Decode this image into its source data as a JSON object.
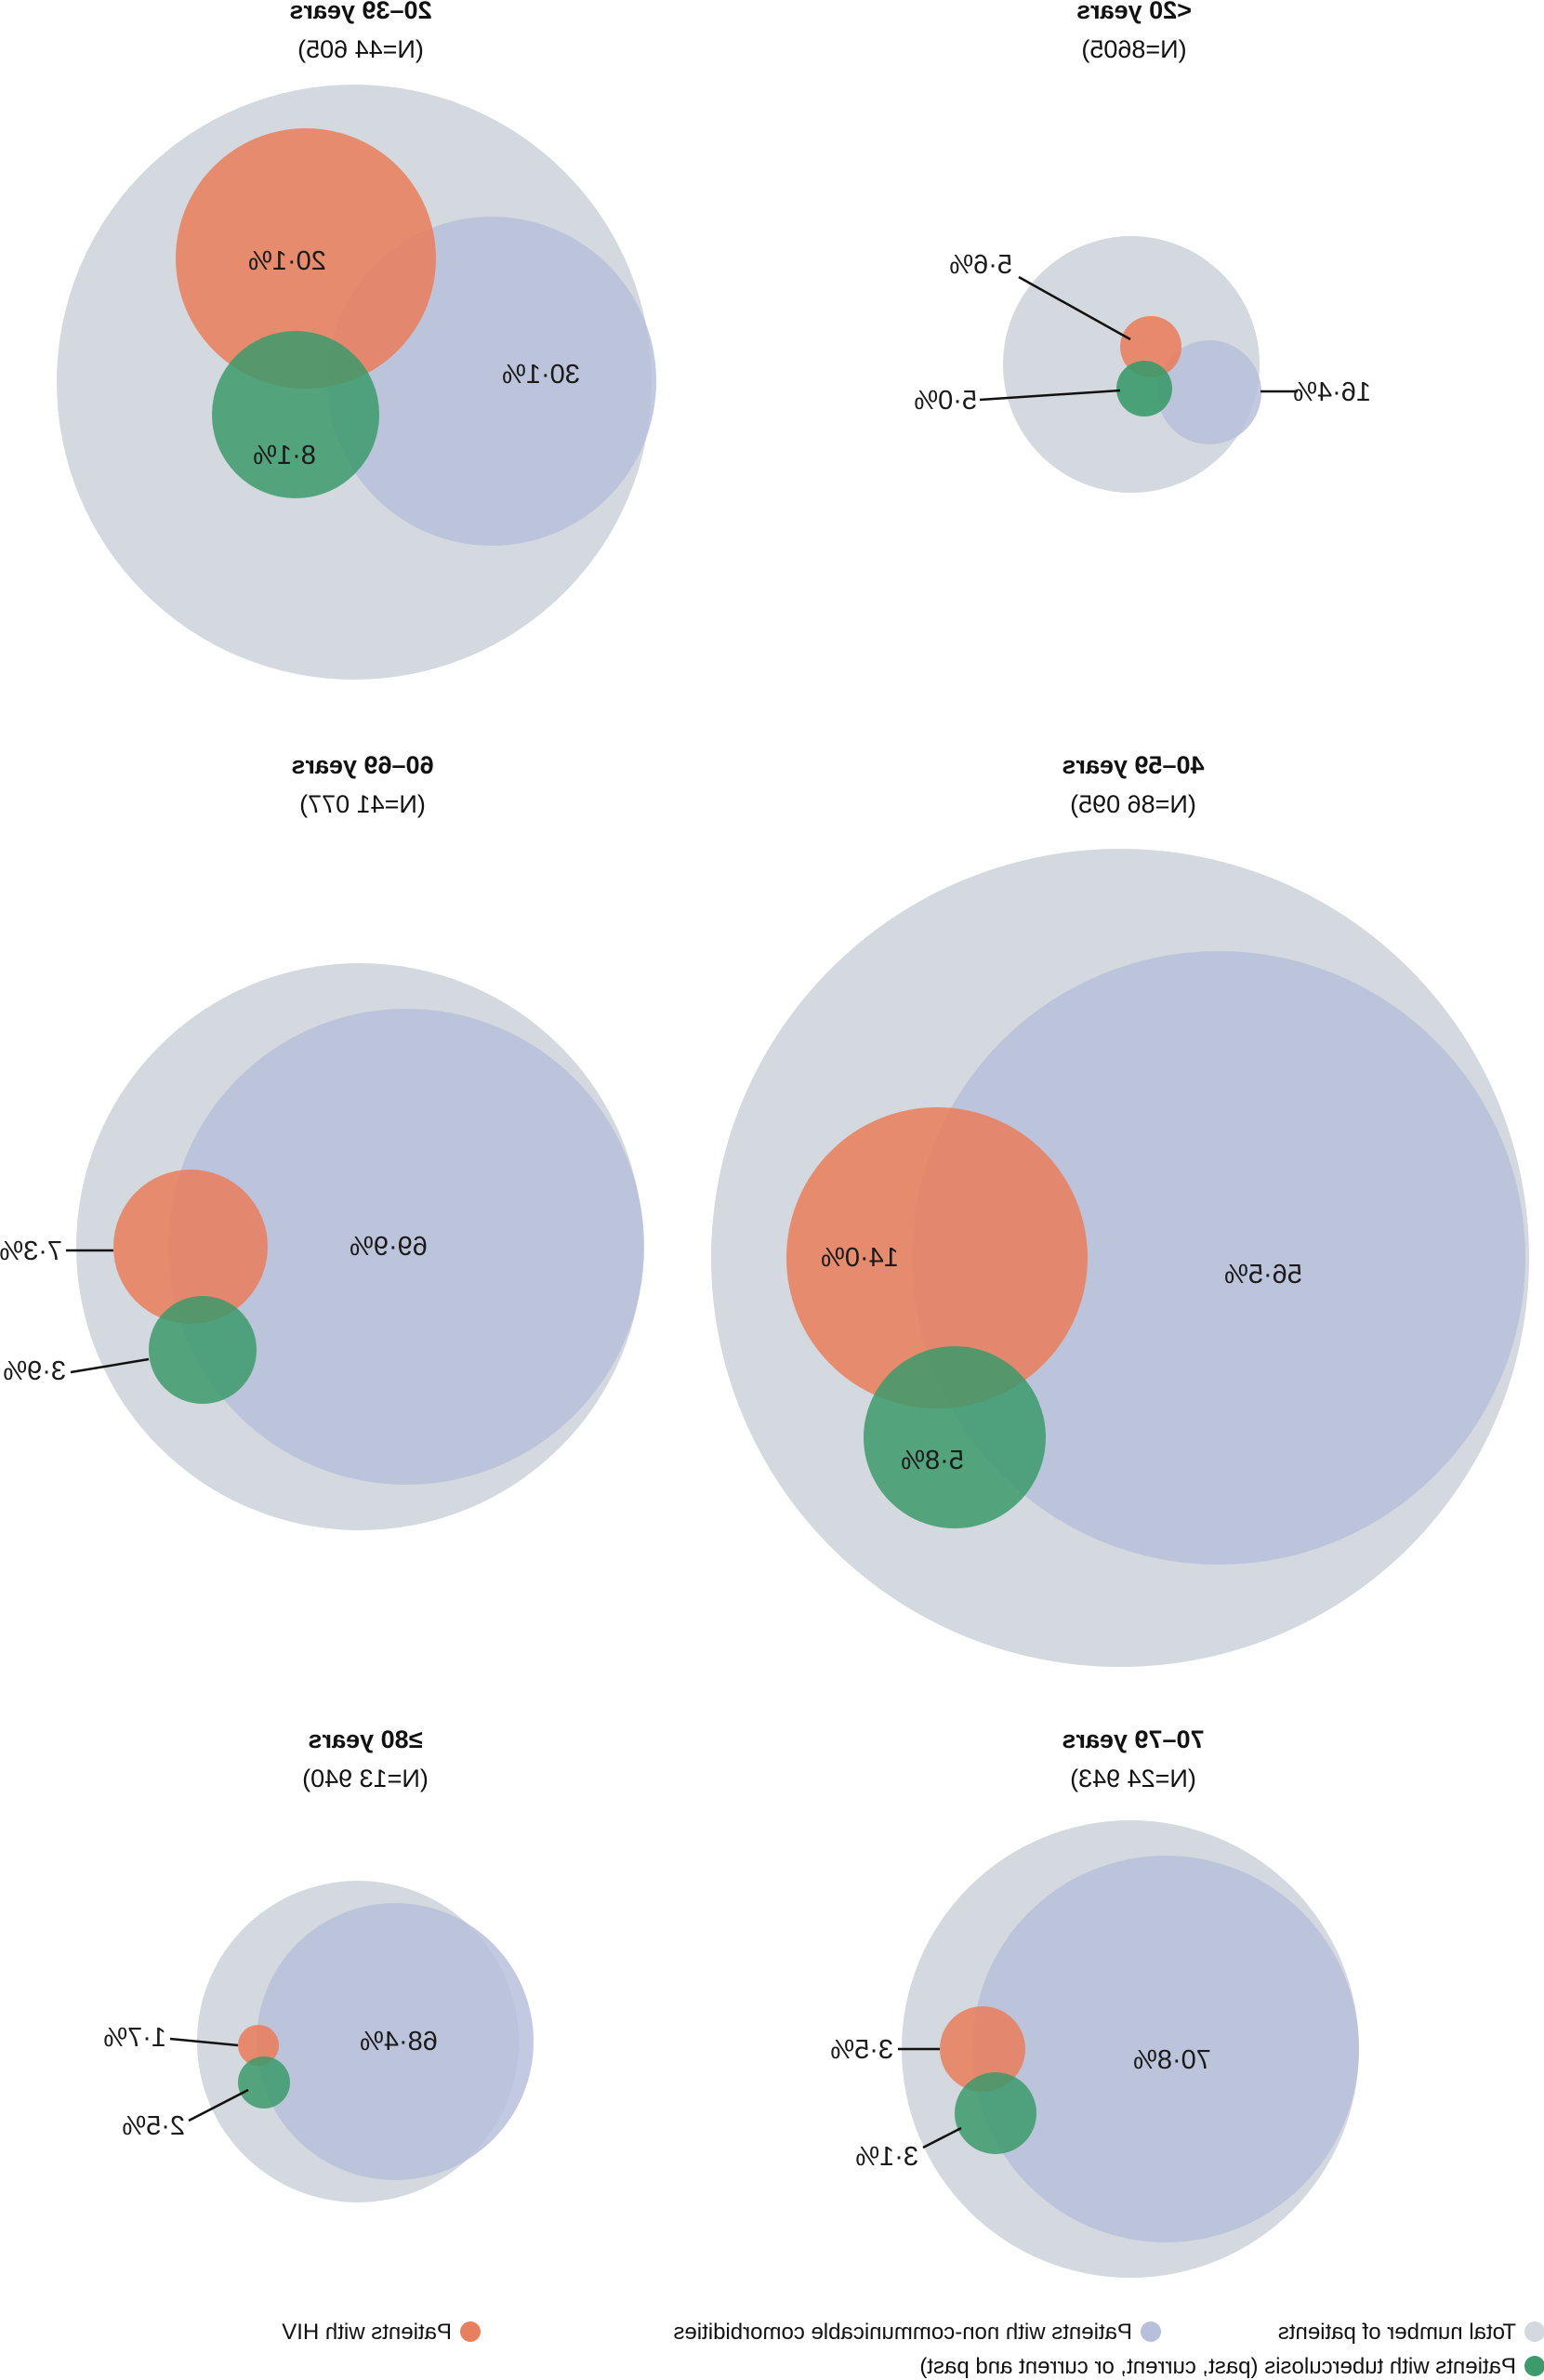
{
  "colors": {
    "total": "#d3d9de",
    "ncd": "#b7bfdc",
    "hiv": "#e8805f",
    "tb": "#3c9a6b"
  },
  "legend": {
    "total": "Total number of patients",
    "ncd": "Patients with non-communicable comorbidities",
    "hiv": "Patients with HIV",
    "tb": "Patients with tuberculosis (past, current, or current and past)"
  },
  "groups": [
    {
      "title": "<20 years",
      "n": "(N=8605)",
      "ncd": "16·4%",
      "hiv": "5·6%",
      "tb": "5·0%"
    },
    {
      "title": "20–39 years",
      "n": "(N=44 605)",
      "ncd": "30·1%",
      "hiv": "20·1%",
      "tb": "8·1%"
    },
    {
      "title": "40–59 years",
      "n": "(N=86 095)",
      "ncd": "56·5%",
      "hiv": "14·0%",
      "tb": "5·8%"
    },
    {
      "title": "60–69 years",
      "n": "(N=41 077)",
      "ncd": "69·9%",
      "hiv": "7·3%",
      "tb": "3·9%"
    },
    {
      "title": "70–79 years",
      "n": "(N=24 943)",
      "ncd": "70·8%",
      "hiv": "3·5%",
      "tb": "3·1%"
    },
    {
      "title": "≥80 years",
      "n": "(N=13 940)",
      "ncd": "68·4%",
      "hiv": "1·7%",
      "tb": "2·5%"
    }
  ]
}
